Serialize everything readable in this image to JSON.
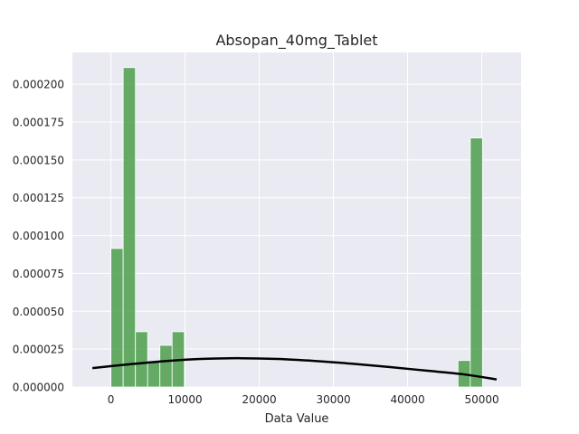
{
  "chart_data": {
    "type": "bar",
    "title": "Absopan_40mg_Tablet",
    "xlabel": "Data Value",
    "ylabel": "",
    "xlim": [
      -5200,
      55300
    ],
    "ylim": [
      0,
      0.000221
    ],
    "grid": true,
    "style": "seaborn-darkgrid",
    "x_ticks": [
      0,
      10000,
      20000,
      30000,
      40000,
      50000
    ],
    "x_tick_labels": [
      "0",
      "10000",
      "20000",
      "30000",
      "40000",
      "50000"
    ],
    "y_ticks": [
      0,
      2.5e-05,
      5e-05,
      7.5e-05,
      0.0001,
      0.000125,
      0.00015,
      0.000175,
      0.0002
    ],
    "y_tick_labels": [
      "0.000000",
      "0.000025",
      "0.000050",
      "0.000075",
      "0.000100",
      "0.000125",
      "0.000150",
      "0.000175",
      "0.000200"
    ],
    "histogram": {
      "name": "histogram",
      "color": "#4c9f4c",
      "bins": [
        {
          "x0": 0,
          "x1": 1650,
          "value": 9.15e-05
        },
        {
          "x0": 1650,
          "x1": 3300,
          "value": 0.000211
        },
        {
          "x0": 3300,
          "x1": 4950,
          "value": 3.65e-05
        },
        {
          "x0": 4950,
          "x1": 6600,
          "value": 1.65e-05
        },
        {
          "x0": 6600,
          "x1": 8250,
          "value": 2.75e-05
        },
        {
          "x0": 8250,
          "x1": 9900,
          "value": 3.65e-05
        },
        {
          "x0": 46800,
          "x1": 48450,
          "value": 1.75e-05
        },
        {
          "x0": 48450,
          "x1": 50100,
          "value": 0.0001645
        }
      ]
    },
    "density_curve": {
      "name": "normal-fit",
      "color": "#000000",
      "x": [
        -2500,
        2500,
        7500,
        12500,
        17500,
        22500,
        27500,
        32500,
        37500,
        42500,
        47500,
        52000
      ],
      "y": [
        1.25e-05,
        1.5e-05,
        1.72e-05,
        1.86e-05,
        1.9e-05,
        1.85e-05,
        1.72e-05,
        1.54e-05,
        1.32e-05,
        1.08e-05,
        8.4e-06,
        5e-06
      ]
    }
  }
}
